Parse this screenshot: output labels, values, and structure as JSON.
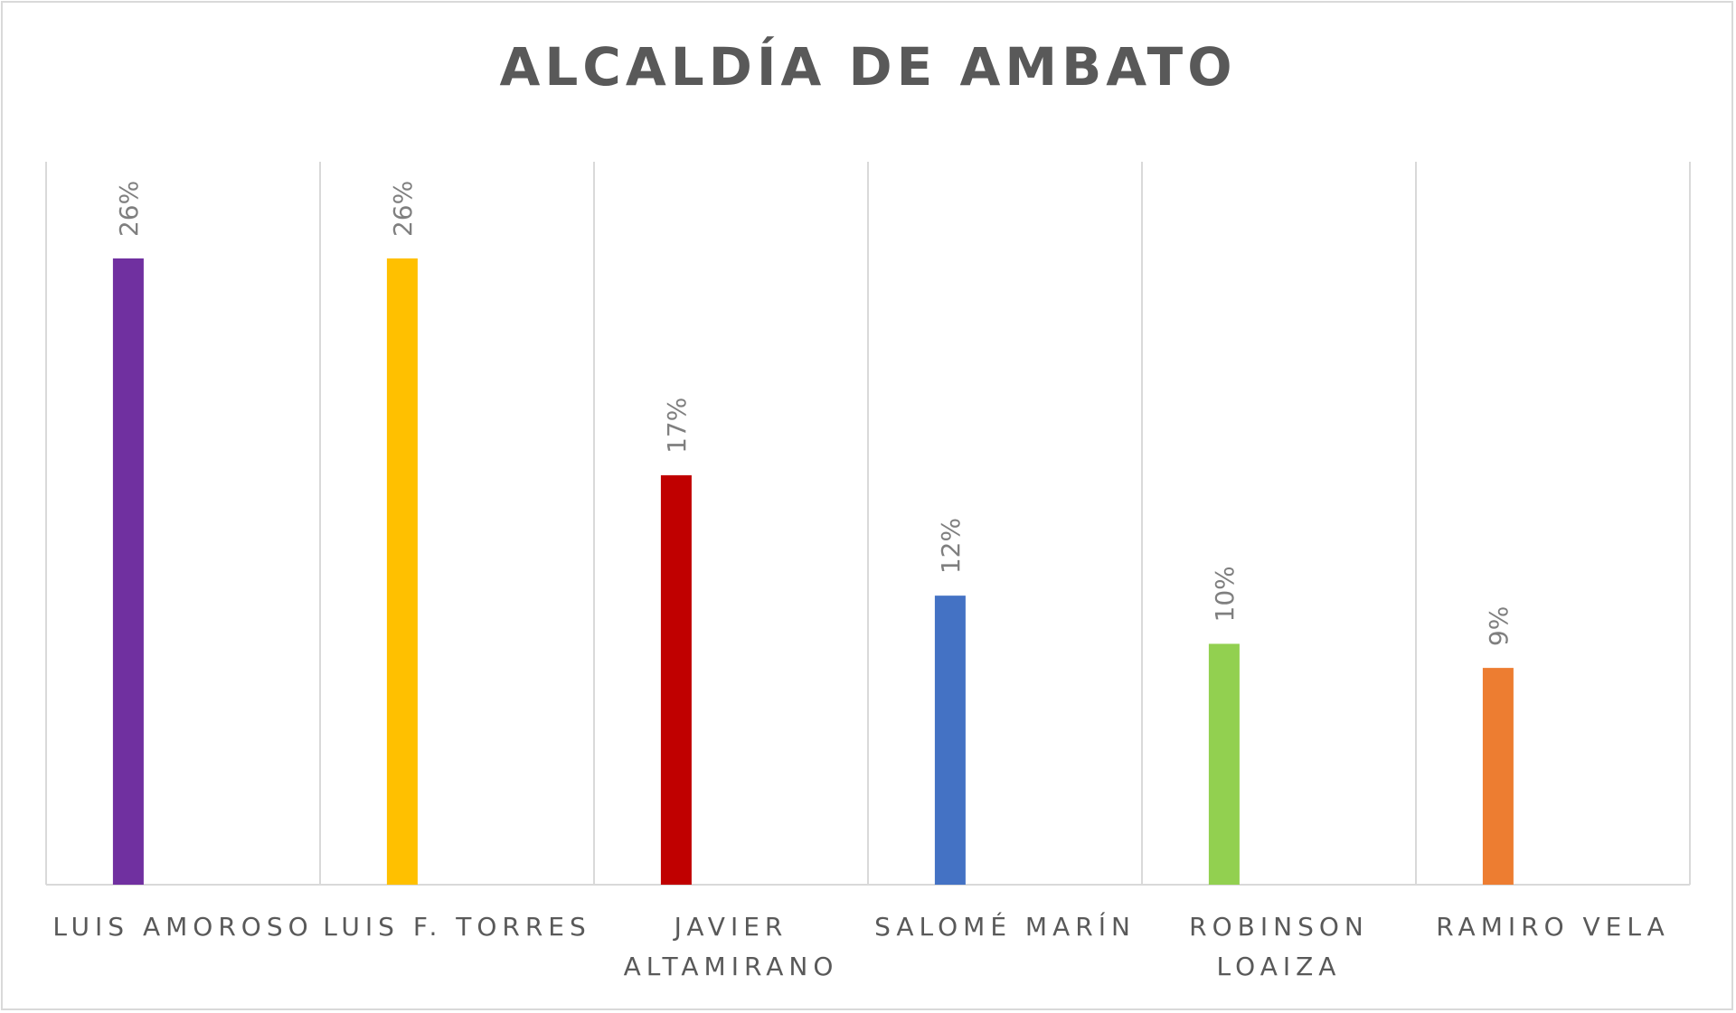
{
  "chart_data": {
    "type": "bar",
    "title": "ALCALDÍA DE AMBATO",
    "xlabel": "",
    "ylabel": "",
    "ylim": [
      0,
      0.27
    ],
    "grid": "vertical",
    "categories": [
      [
        "LUIS AMOROSO"
      ],
      [
        "LUIS F. TORRES"
      ],
      [
        "JAVIER",
        "ALTAMIRANO"
      ],
      [
        "SALOMÉ MARÍN"
      ],
      [
        "ROBINSON",
        "LOAIZA"
      ],
      [
        "RAMIRO VELA"
      ]
    ],
    "values": [
      0.26,
      0.26,
      0.17,
      0.12,
      0.1,
      0.09
    ],
    "data_labels": [
      "26%",
      "26%",
      "17%",
      "12%",
      "10%",
      "9%"
    ],
    "colors": [
      "#7030a0",
      "#ffc000",
      "#c00000",
      "#4472c4",
      "#92d050",
      "#ed7d31"
    ]
  }
}
